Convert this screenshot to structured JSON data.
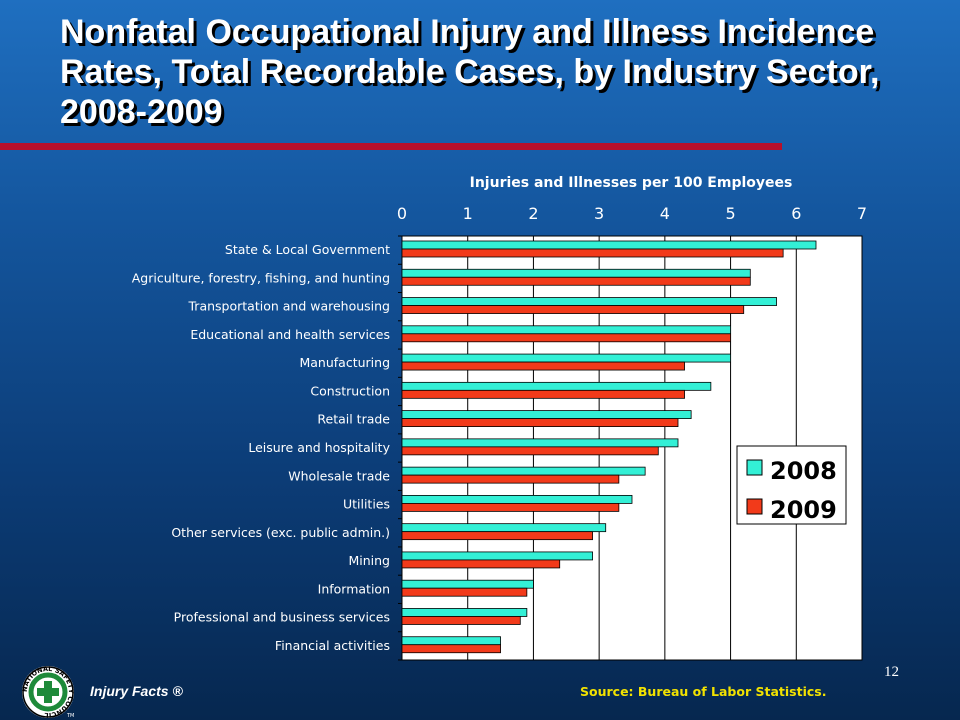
{
  "slide": {
    "title": "Nonfatal Occupational Injury and Illness Incidence Rates, Total Recordable Cases, by Industry Sector, 2008-2009",
    "page_number": "12",
    "source": "Source: Bureau of Labor Statistics.",
    "brand": "Injury Facts ®",
    "logo_text": "NATIONAL SAFETY COUNCIL",
    "logo_tm": "TM"
  },
  "colors": {
    "series_2008": "#33f0d6",
    "series_2009": "#f23a1a",
    "plot_background": "#ffffff",
    "title_rule": "#b8102b",
    "source_text": "#f2e200",
    "logo_green": "#1e8a3a"
  },
  "chart_data": {
    "type": "bar",
    "orientation": "horizontal",
    "title": "Injuries and Illnesses per 100 Employees",
    "xlim": [
      0,
      7
    ],
    "xticks": [
      0,
      1,
      2,
      3,
      4,
      5,
      6,
      7
    ],
    "xaxis_position": "top",
    "grid": true,
    "legend_position": "right",
    "categories": [
      "State & Local Government",
      "Agriculture, forestry, fishing, and hunting",
      "Transportation and warehousing",
      "Educational and health services",
      "Manufacturing",
      "Construction",
      "Retail trade",
      "Leisure and hospitality",
      "Wholesale trade",
      "Utilities",
      "Other services (exc. public admin.)",
      "Mining",
      "Information",
      "Professional and business services",
      "Financial activities"
    ],
    "series": [
      {
        "name": "2008",
        "values": [
          6.3,
          5.3,
          5.7,
          5.0,
          5.0,
          4.7,
          4.4,
          4.2,
          3.7,
          3.5,
          3.1,
          2.9,
          2.0,
          1.9,
          1.5
        ]
      },
      {
        "name": "2009",
        "values": [
          5.8,
          5.3,
          5.2,
          5.0,
          4.3,
          4.3,
          4.2,
          3.9,
          3.3,
          3.3,
          2.9,
          2.4,
          1.9,
          1.8,
          1.5
        ]
      }
    ]
  }
}
